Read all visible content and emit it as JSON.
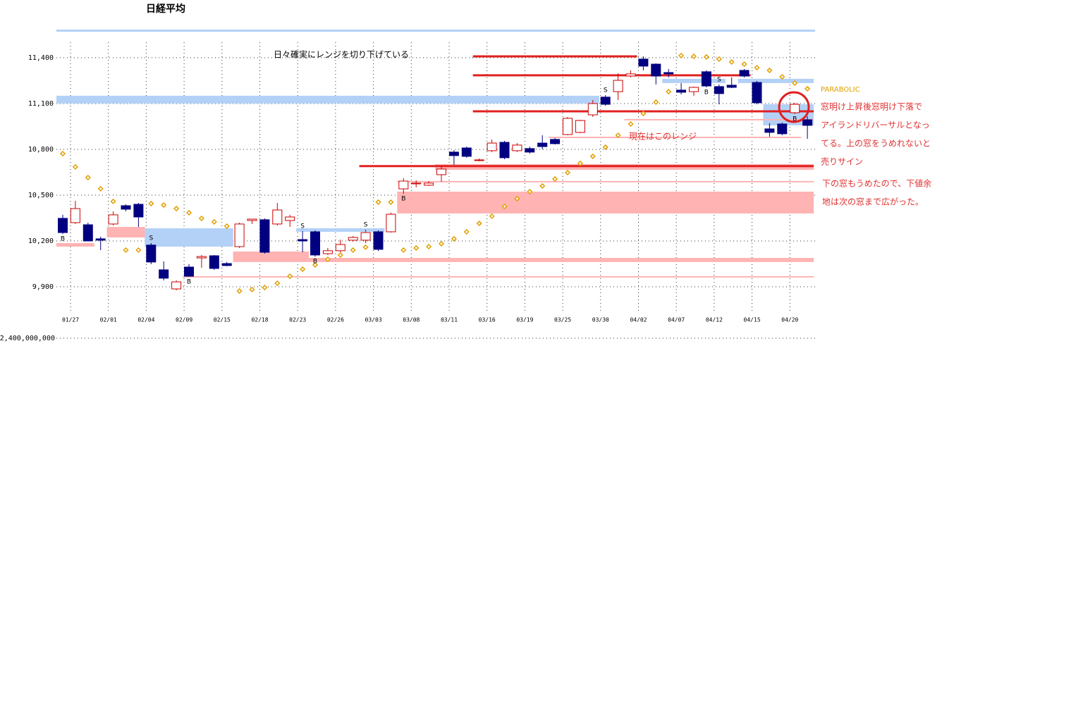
{
  "chart_data": {
    "type": "candlestick",
    "title": "日経平均",
    "categories": [
      "01/27",
      null,
      null,
      "02/01",
      null,
      null,
      "02/04",
      null,
      null,
      "02/09",
      null,
      null,
      "02/15",
      null,
      null,
      "02/18",
      null,
      null,
      "02/23",
      null,
      null,
      "02/26",
      null,
      null,
      "03/03",
      null,
      null,
      "03/08",
      null,
      null,
      "03/11",
      null,
      null,
      "03/16",
      null,
      null,
      "03/19",
      null,
      null,
      "03/25",
      null,
      null,
      "03/30",
      null,
      null,
      "04/02",
      null,
      null,
      "04/07",
      null,
      null,
      "04/12",
      null,
      null,
      "04/15",
      null,
      null,
      "04/20",
      null,
      null
    ],
    "open": [
      10348,
      10320,
      10306,
      10214,
      10311,
      10431,
      10440,
      10173,
      10011,
      9886,
      10029,
      10089,
      10103,
      10052,
      10163,
      10334,
      10339,
      10311,
      10334,
      10209,
      10260,
      10117,
      10136,
      10205,
      10205,
      10260,
      10260,
      10541,
      10574,
      10565,
      10634,
      10782,
      10809,
      10727,
      10791,
      10846,
      10791,
      10805,
      10841,
      10865,
      10897,
      10911,
      11026,
      11142,
      11178,
      11280,
      11391,
      11358,
      11303,
      11188,
      11178,
      11308,
      11211,
      11220,
      11317,
      11238,
      10934,
      10966,
      11040,
      10994
    ],
    "high": [
      10371,
      10463,
      10320,
      10228,
      10394,
      10440,
      10449,
      10186,
      10066,
      9942,
      10048,
      10108,
      10108,
      10062,
      10320,
      10345,
      10348,
      10449,
      10371,
      10264,
      10269,
      10154,
      10209,
      10232,
      10274,
      10269,
      10385,
      10611,
      10597,
      10592,
      10689,
      10795,
      10818,
      10740,
      10864,
      10855,
      10841,
      10818,
      10892,
      10874,
      11012,
      10994,
      11123,
      11155,
      11298,
      11317,
      11409,
      11363,
      11326,
      11234,
      11211,
      11317,
      11225,
      11271,
      11326,
      11248,
      10971,
      10975,
      11105,
      11017
    ],
    "low": [
      10246,
      10311,
      10200,
      10140,
      10302,
      10394,
      10292,
      10048,
      9942,
      9877,
      9965,
      10025,
      10011,
      10034,
      10154,
      10311,
      10117,
      10302,
      10292,
      10126,
      10098,
      10108,
      10126,
      10195,
      10186,
      10135,
      10255,
      10509,
      10551,
      10560,
      10588,
      10699,
      10745,
      10722,
      10782,
      10736,
      10782,
      10772,
      10800,
      10832,
      10892,
      10906,
      11012,
      11086,
      11123,
      11271,
      11317,
      11225,
      11271,
      11160,
      11151,
      11206,
      11095,
      11201,
      11271,
      11095,
      10883,
      10892,
      11031,
      10869
    ],
    "close": [
      10255,
      10412,
      10200,
      10205,
      10371,
      10408,
      10357,
      10062,
      9956,
      9932,
      9969,
      10098,
      10020,
      10039,
      10311,
      10343,
      10126,
      10403,
      10357,
      10200,
      10108,
      10136,
      10177,
      10223,
      10255,
      10145,
      10375,
      10592,
      10579,
      10579,
      10671,
      10759,
      10754,
      10731,
      10841,
      10745,
      10828,
      10782,
      10818,
      10837,
      11003,
      10989,
      11100,
      11095,
      11252,
      11294,
      11345,
      11280,
      11294,
      11174,
      11206,
      11215,
      11165,
      11206,
      11280,
      11105,
      10911,
      10902,
      11095,
      10957
    ],
    "up_color": "#cc0000",
    "down_color": "#000080",
    "parabolic": {
      "name": "PARABOLIC",
      "color": "#e0a000",
      "values": [
        10772,
        10685,
        10615,
        10542,
        10459,
        10140,
        10140,
        10445,
        10435,
        10412,
        10385,
        10348,
        10325,
        10297,
        9872,
        9882,
        9895,
        9923,
        9969,
        10015,
        10043,
        10080,
        10108,
        10140,
        10159,
        10454,
        10454,
        10140,
        10154,
        10163,
        10182,
        10214,
        10260,
        10315,
        10362,
        10426,
        10477,
        10523,
        10560,
        10606,
        10648,
        10708,
        10754,
        10814,
        10892,
        10966,
        11035,
        11109,
        11178,
        11414,
        11409,
        11405,
        11391,
        11372,
        11358,
        11335,
        11317,
        11275,
        11234,
        11197
      ]
    },
    "signals": [
      "B",
      null,
      null,
      null,
      null,
      null,
      null,
      "S",
      null,
      null,
      "B",
      null,
      null,
      null,
      null,
      null,
      null,
      null,
      null,
      "S",
      "B",
      null,
      null,
      null,
      "S",
      null,
      null,
      "B",
      null,
      null,
      null,
      null,
      null,
      null,
      null,
      null,
      null,
      null,
      null,
      null,
      null,
      null,
      null,
      "S",
      null,
      null,
      null,
      null,
      null,
      null,
      null,
      "B",
      "S",
      null,
      null,
      null,
      null,
      null,
      "B",
      null
    ],
    "zones": [
      {
        "low": 11100,
        "high": 11151,
        "start": 0,
        "end": 42,
        "color": "#b3d1f7"
      },
      {
        "low": 11234,
        "high": 11262,
        "start": 48,
        "end": 52,
        "color": "#b3d1f7"
      },
      {
        "low": 11234,
        "high": 11262,
        "start": 54,
        "end": 59,
        "color": "#b3d1f7"
      },
      {
        "low": 10957,
        "high": 11095,
        "start": 56,
        "end": 59,
        "color": "#b3d1f7"
      },
      {
        "low": 10163,
        "high": 10283,
        "start": 7,
        "end": 13,
        "color": "#b3d1f7"
      },
      {
        "low": 10260,
        "high": 10283,
        "start": 19,
        "end": 25,
        "color": "#b3d1f7"
      },
      {
        "low": 10666,
        "high": 10703,
        "start": 30,
        "end": 59,
        "color": "#ffb3b3"
      },
      {
        "low": 10380,
        "high": 10523,
        "start": 27,
        "end": 59,
        "color": "#ffb3b3"
      },
      {
        "low": 10223,
        "high": 10292,
        "start": 4,
        "end": 6,
        "color": "#ffb3b3"
      },
      {
        "low": 10163,
        "high": 10186,
        "start": 0,
        "end": 2,
        "color": "#ffb3b3"
      },
      {
        "low": 10062,
        "high": 10131,
        "start": 14,
        "end": 19,
        "color": "#ffb3b3"
      },
      {
        "low": 10062,
        "high": 10089,
        "start": 20,
        "end": 59,
        "color": "#ffb3b3"
      }
    ],
    "lines": [
      {
        "value": 11409,
        "start": 33,
        "end": 45,
        "color": "#e02020",
        "style": "thick"
      },
      {
        "value": 11285,
        "start": 33,
        "end": 54,
        "color": "#e02020",
        "style": "thick"
      },
      {
        "value": 11049,
        "start": 33,
        "end": 59,
        "color": "#e02020",
        "style": "thick"
      },
      {
        "value": 10690,
        "start": 24,
        "end": 59,
        "color": "#e02020",
        "style": "thick"
      },
      {
        "value": 10994,
        "start": 45,
        "end": 59,
        "color": "#ffb3b3",
        "style": "thin"
      },
      {
        "value": 10878,
        "start": 39,
        "end": 58,
        "color": "#ffb3b3",
        "style": "thin"
      },
      {
        "value": 10588,
        "start": 27,
        "end": 59,
        "color": "#ffb3b3",
        "style": "thin"
      },
      {
        "value": 9965,
        "start": 10,
        "end": 59,
        "color": "#ffb3b3",
        "style": "thin"
      }
    ],
    "ylim": [
      9750,
      11575
    ],
    "yticks": [
      {
        "value": 9900,
        "label": "9,900"
      },
      {
        "value": 10200,
        "label": "10,200"
      },
      {
        "value": 10500,
        "label": "10,500"
      },
      {
        "value": 10800,
        "label": "10,800"
      },
      {
        "value": 11100,
        "label": "11,100"
      },
      {
        "value": 11400,
        "label": "11,400"
      }
    ],
    "volume_ticks": [
      {
        "value": 2400000000,
        "label": "2,400,000,000"
      }
    ],
    "grid": true,
    "annotations": [
      {
        "text": "日々確実にレンジを切り下げている",
        "color": "#000000"
      },
      {
        "text": "現在はこのレンジ",
        "color": "#e03030"
      },
      {
        "text": "窓明け上昇後窓明け下落で",
        "color": "#e03030"
      },
      {
        "text": "アイランドリバーサルとなっ",
        "color": "#e03030"
      },
      {
        "text": "てる。上の窓をうめれないと",
        "color": "#e03030"
      },
      {
        "text": "売りサイン",
        "color": "#e03030"
      },
      {
        "text": "下の窓もうめたので、下値余",
        "color": "#e03030"
      },
      {
        "text": "地は次の窓まで広がった。",
        "color": "#e03030"
      }
    ]
  }
}
